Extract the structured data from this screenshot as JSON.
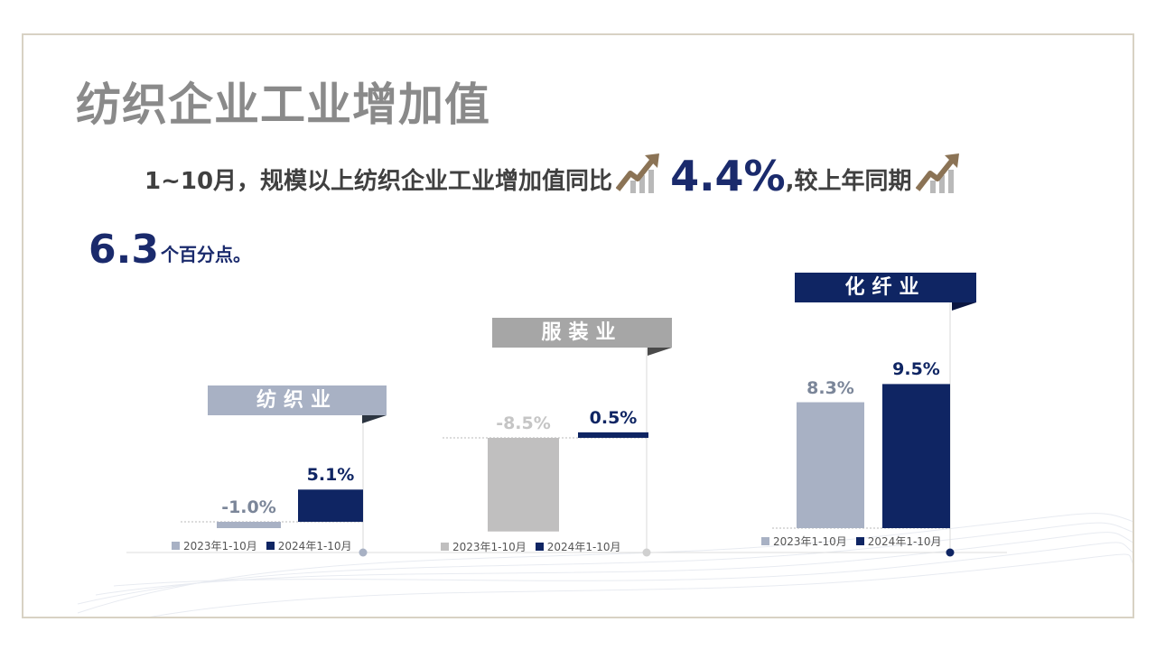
{
  "page_title": "纺织企业工业增加值",
  "summary": {
    "lead": "1~10月，规模以上纺织企业工业增加值同比",
    "growth": "4.4%",
    "mid": ",较上年同期",
    "gain": "6.3",
    "tail": "个百分点。",
    "trend_icon": "rising-arrow-chart-icon"
  },
  "legend": {
    "prev": "2023年1-10月",
    "curr": "2024年1-10月"
  },
  "colors": {
    "navy": "#0f2563",
    "steel": "#a8b1c4",
    "gray": "#c0bfbf",
    "title_gray": "#a6a6a6",
    "gold": "#8b7355"
  },
  "chart_data": [
    {
      "type": "bar",
      "title": "纺织业",
      "categories": [
        "2023年1-10月",
        "2024年1-10月"
      ],
      "values": [
        -1.0,
        5.1
      ],
      "labels": [
        "-1.0%",
        "5.1%"
      ]
    },
    {
      "type": "bar",
      "title": "服装业",
      "categories": [
        "2023年1-10月",
        "2024年1-10月"
      ],
      "values": [
        -8.5,
        0.5
      ],
      "labels": [
        "-8.5%",
        "0.5%"
      ]
    },
    {
      "type": "bar",
      "title": "化纤业",
      "categories": [
        "2023年1-10月",
        "2024年1-10月"
      ],
      "values": [
        8.3,
        9.5
      ],
      "labels": [
        "8.3%",
        "9.5%"
      ]
    }
  ]
}
